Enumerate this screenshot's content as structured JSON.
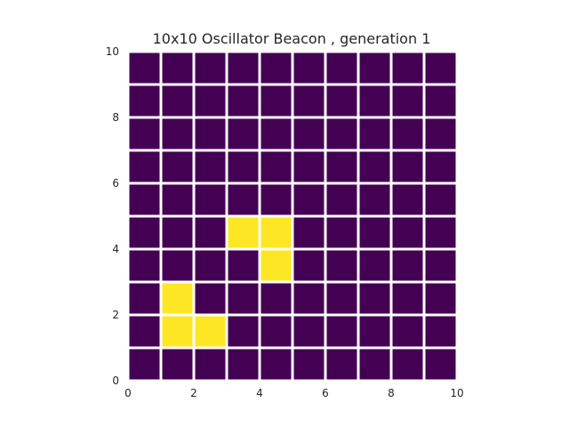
{
  "chart_data": {
    "type": "heatmap",
    "title": "10x10 Oscillator Beacon , generation 1",
    "xlim": [
      0,
      10
    ],
    "ylim": [
      0,
      10
    ],
    "xticks": [
      0,
      2,
      4,
      6,
      8,
      10
    ],
    "yticks": [
      0,
      2,
      4,
      6,
      8,
      10
    ],
    "grid": "white cell borders",
    "colors": {
      "dead": "#440154",
      "alive": "#fde725",
      "separator": "#ffffff"
    },
    "live_cells": [
      {
        "x": 1,
        "y": 1
      },
      {
        "x": 2,
        "y": 1
      },
      {
        "x": 1,
        "y": 2
      },
      {
        "x": 4,
        "y": 3
      },
      {
        "x": 3,
        "y": 4
      },
      {
        "x": 4,
        "y": 4
      }
    ],
    "grid_size": [
      10,
      10
    ]
  }
}
